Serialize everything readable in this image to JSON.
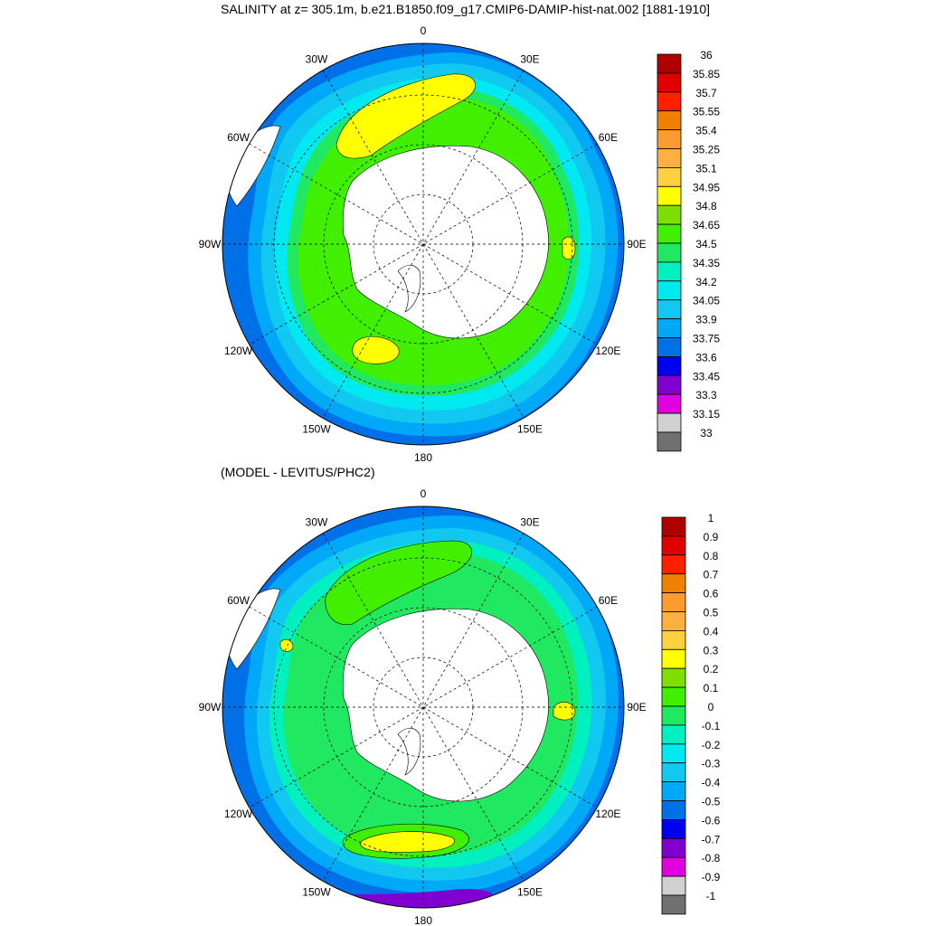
{
  "title": "SALINITY at z= 305.1m, b.e21.B1850.f09_g17.CMIP6-DAMIP-hist-nat.002 [1881-1910]",
  "subtitle": "(MODEL - LEVITUS/PHC2)",
  "longitude_labels": [
    "0",
    "30E",
    "60E",
    "90E",
    "120E",
    "150E",
    "180",
    "150W",
    "120W",
    "90W",
    "60W",
    "30W"
  ],
  "panels": [
    {
      "id": "salinity",
      "colorbar": {
        "labels": [
          "36",
          "35.85",
          "35.7",
          "35.55",
          "35.4",
          "35.25",
          "35.1",
          "34.95",
          "34.8",
          "34.65",
          "34.5",
          "34.35",
          "34.2",
          "34.05",
          "33.9",
          "33.75",
          "33.6",
          "33.45",
          "33.3",
          "33.15",
          "33"
        ],
        "colors": [
          "#b00000",
          "#e00000",
          "#ff2000",
          "#f08000",
          "#ff9a30",
          "#ffb040",
          "#ffd040",
          "#ffff00",
          "#7ee000",
          "#40f000",
          "#20e860",
          "#00f0c0",
          "#00e8f0",
          "#10c8f0",
          "#00a8f8",
          "#0070e8",
          "#0000f0",
          "#8000d0",
          "#e000e0",
          "#d0d0d0",
          "#707070"
        ]
      }
    },
    {
      "id": "difference",
      "colorbar": {
        "labels": [
          "1",
          "0.9",
          "0.8",
          "0.7",
          "0.6",
          "0.5",
          "0.4",
          "0.3",
          "0.2",
          "0.1",
          "0",
          "-0.1",
          "-0.2",
          "-0.3",
          "-0.4",
          "-0.5",
          "-0.6",
          "-0.7",
          "-0.8",
          "-0.9",
          "-1"
        ],
        "colors": [
          "#b00000",
          "#e00000",
          "#ff2000",
          "#f08000",
          "#ff9a30",
          "#ffb040",
          "#ffd040",
          "#ffff00",
          "#7ee000",
          "#40f000",
          "#20e860",
          "#00f0c0",
          "#00e8f0",
          "#10c8f0",
          "#00a8f8",
          "#0070e8",
          "#0000f0",
          "#8000d0",
          "#e000e0",
          "#d0d0d0",
          "#707070"
        ]
      }
    }
  ]
}
